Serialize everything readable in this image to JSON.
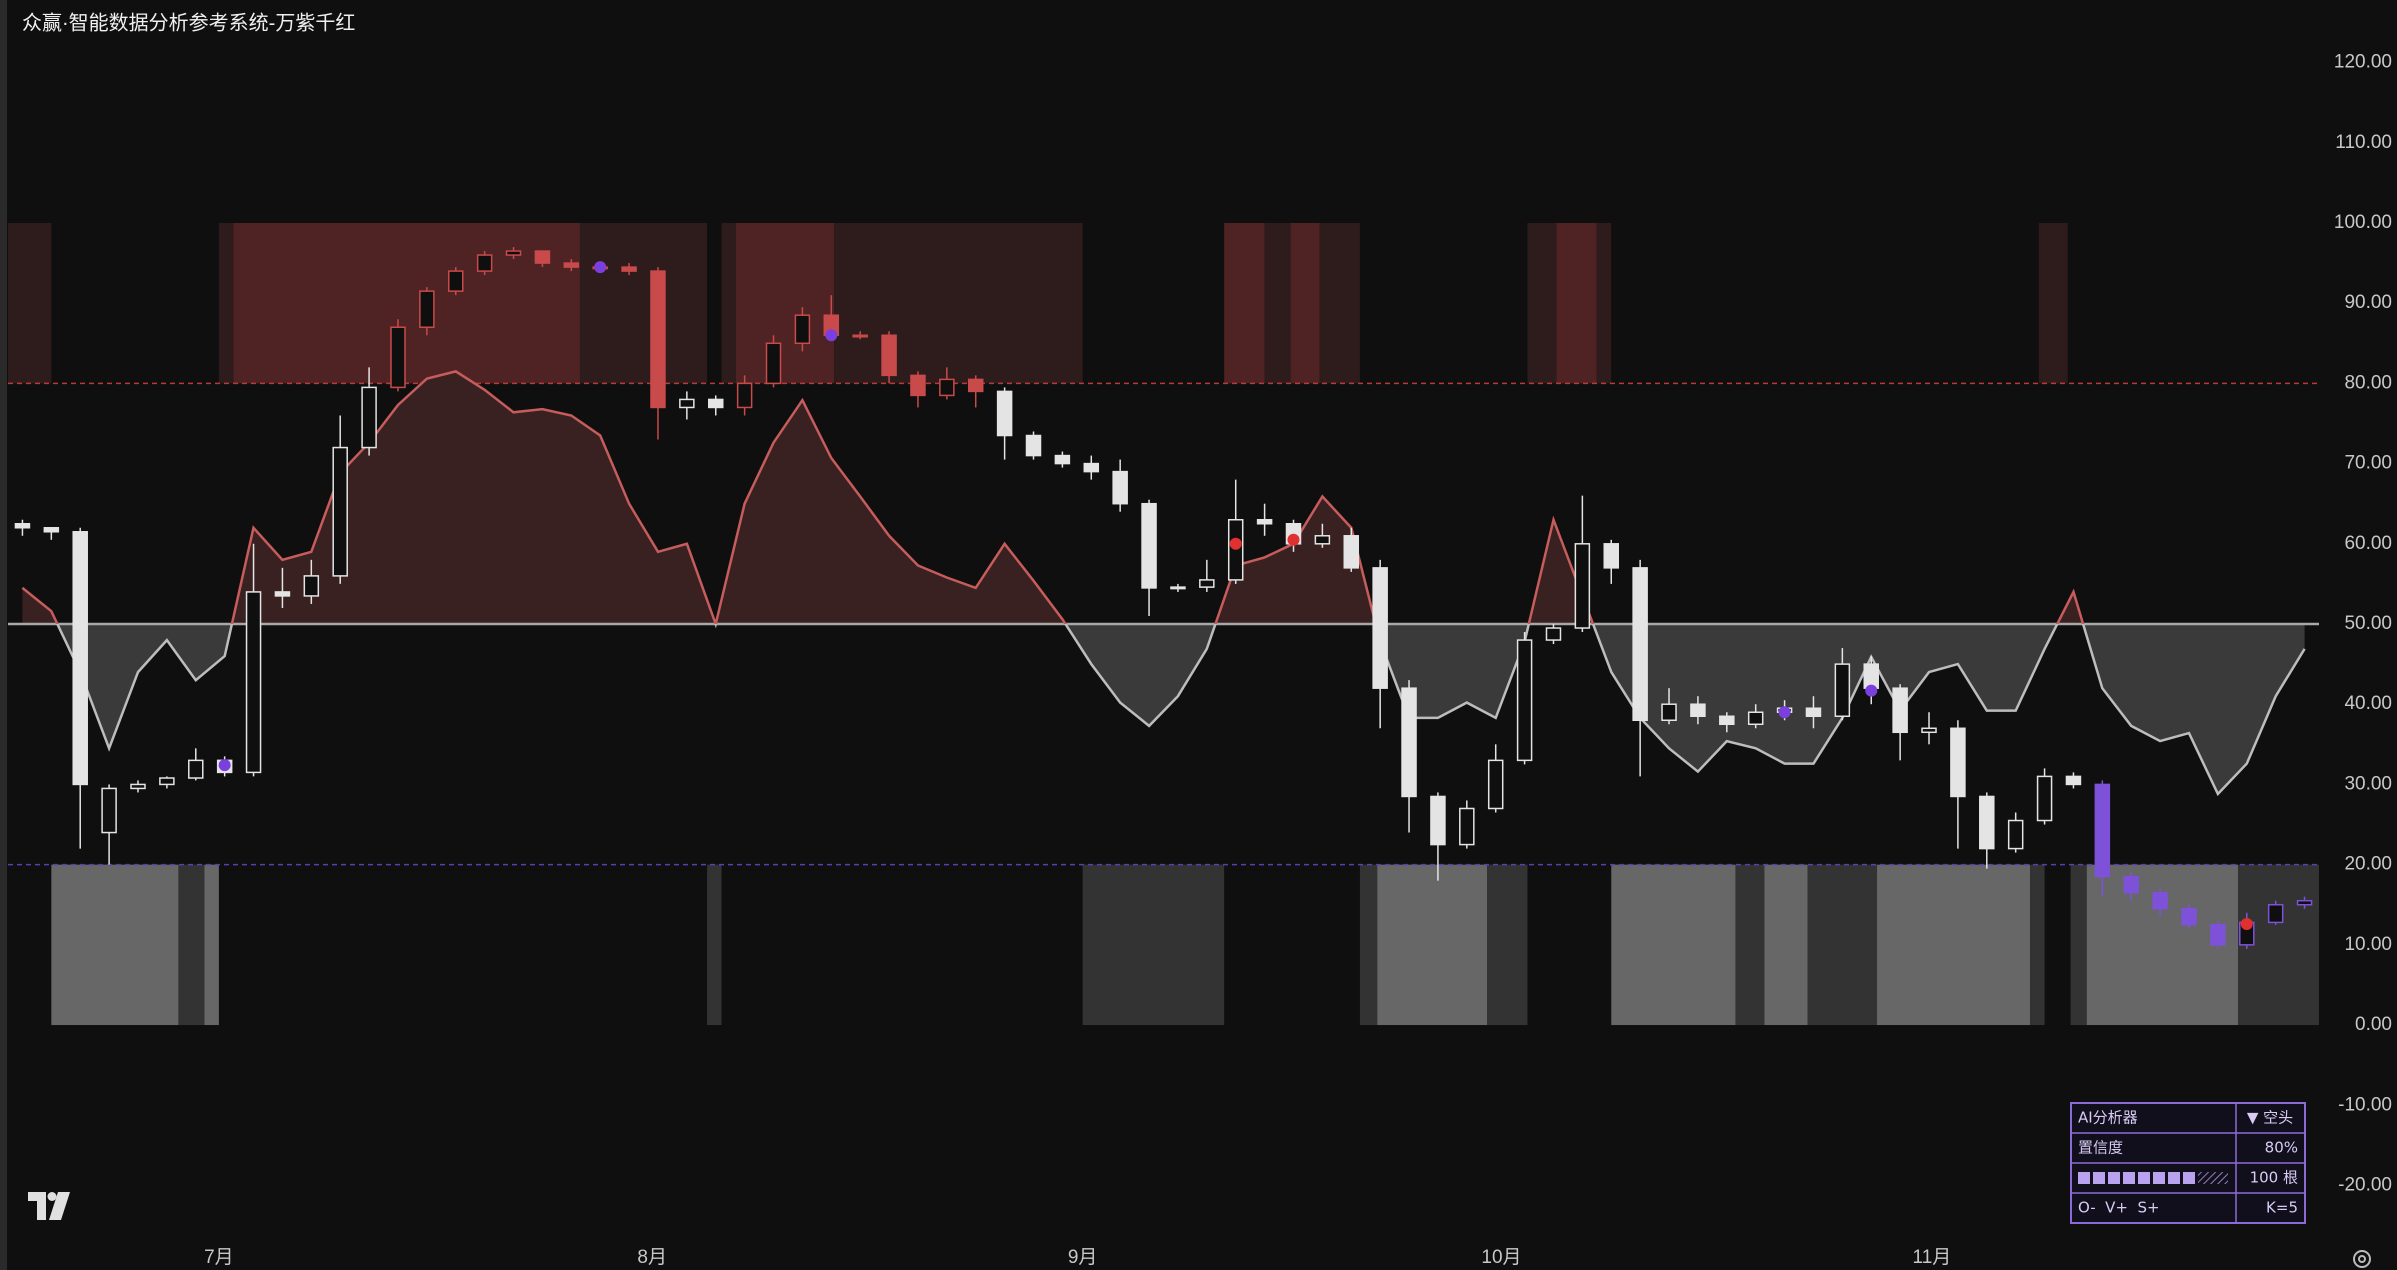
{
  "chart_data": {
    "type": "candlestick",
    "title": "众赢·智能数据分析参考系统-万紫千红",
    "ylim": [
      -26.8,
      127.8
    ],
    "yticks": [
      {
        "value": 120,
        "label": "120.00"
      },
      {
        "value": 110,
        "label": "110.00"
      },
      {
        "value": 100,
        "label": "100.00"
      },
      {
        "value": 90,
        "label": "90.00"
      },
      {
        "value": 80,
        "label": "80.00"
      },
      {
        "value": 70,
        "label": "70.00"
      },
      {
        "value": 60,
        "label": "60.00"
      },
      {
        "value": 50,
        "label": "50.00"
      },
      {
        "value": 40,
        "label": "40.00"
      },
      {
        "value": 30,
        "label": "30.00"
      },
      {
        "value": 20,
        "label": "20.00"
      },
      {
        "value": 10,
        "label": "10.00"
      },
      {
        "value": 0,
        "label": "0.00"
      },
      {
        "value": -10,
        "label": "-10.00"
      },
      {
        "value": -20,
        "label": "-20.00"
      }
    ],
    "xlim": [
      0,
      80
    ],
    "xticks": [
      {
        "value": 7.3,
        "label": "7月"
      },
      {
        "value": 22.3,
        "label": "8月"
      },
      {
        "value": 37.2,
        "label": "9月"
      },
      {
        "value": 51.7,
        "label": "10月"
      },
      {
        "value": 66.6,
        "label": "11月"
      }
    ],
    "open": [
      62.5,
      62,
      61.5,
      24,
      29.5,
      30,
      30.8,
      33,
      31.5,
      54,
      53.5,
      56,
      72,
      79.5,
      87,
      91.5,
      94,
      96,
      96.5,
      95,
      94.5,
      94.5,
      94,
      77,
      78,
      77,
      80,
      85,
      88.5,
      86,
      86,
      81,
      78.5,
      80.5,
      79,
      73.5,
      71,
      70,
      69,
      65,
      54.5,
      54.6,
      55.5,
      63,
      62.5,
      60,
      61,
      57,
      42,
      28.5,
      22.5,
      27,
      33,
      48,
      49.5,
      60,
      57,
      38,
      40,
      38.5,
      37.5,
      39,
      39.5,
      38.5,
      45,
      42,
      36.5,
      37,
      28.5,
      22,
      25.5,
      31,
      30,
      18.5,
      16.5,
      14.5,
      12.5,
      10,
      12.8,
      15
    ],
    "high": [
      63,
      62,
      62,
      30,
      30.5,
      31,
      34.5,
      33.5,
      60,
      57,
      58,
      76,
      82,
      88,
      92,
      94.5,
      96.5,
      97,
      96.5,
      95.5,
      95,
      95,
      94.5,
      79,
      78.5,
      81,
      86,
      89.5,
      91,
      86.5,
      86.5,
      81.5,
      82,
      81,
      79.5,
      74,
      71.5,
      71,
      70.5,
      65.5,
      55,
      58,
      68,
      65,
      63,
      62.5,
      62,
      58,
      43,
      29,
      28,
      35,
      49,
      50,
      66,
      60.5,
      58,
      42,
      41,
      39,
      40,
      40.5,
      41,
      47,
      46,
      42.5,
      39,
      38,
      29,
      26.5,
      32,
      31.5,
      30.5,
      19,
      17,
      15,
      13,
      14,
      15.5,
      16
    ],
    "low": [
      61,
      60.5,
      22,
      20,
      29,
      29.5,
      30.5,
      31,
      31,
      52,
      52.5,
      55,
      71,
      79,
      86,
      91,
      93.5,
      95.5,
      94.5,
      94,
      94,
      93.5,
      73,
      75.5,
      76,
      76,
      79.5,
      84,
      85.5,
      85.5,
      80,
      77,
      78,
      77,
      70.5,
      70.5,
      69.5,
      68,
      64,
      51,
      54,
      54,
      55,
      61,
      59,
      59.5,
      56.5,
      37,
      24,
      18,
      22,
      26.5,
      32.5,
      47.5,
      49,
      55,
      31,
      37.5,
      37.5,
      36.5,
      37,
      38,
      37,
      38,
      40,
      33,
      35,
      22,
      19.5,
      21.5,
      25,
      29.5,
      16,
      15.5,
      13.5,
      12,
      9.5,
      9.5,
      12.5,
      14.5
    ],
    "close": [
      62,
      61.5,
      30,
      29.5,
      30,
      30.8,
      33,
      31.5,
      54,
      53.5,
      56,
      72,
      79.5,
      87,
      91.5,
      94,
      96,
      96.5,
      95,
      94.5,
      94.5,
      94,
      77,
      78,
      77,
      80,
      85,
      88.5,
      86,
      86,
      81,
      78.5,
      80.5,
      79,
      73.5,
      71,
      70,
      69,
      65,
      54.5,
      54.6,
      55.5,
      63,
      62.5,
      60,
      61,
      57,
      42,
      28.5,
      22.5,
      27,
      33,
      48,
      49.5,
      60,
      57,
      38,
      40,
      38.5,
      37.5,
      39,
      39.5,
      38.5,
      45,
      42,
      36.5,
      37,
      28.5,
      22,
      25.5,
      31,
      30,
      18.5,
      16.5,
      14.5,
      12.5,
      10,
      12.8,
      15,
      15.5
    ],
    "candle_colors": {
      "default": "#e4e4e4",
      "upper": "#c94a4a",
      "lower": "#7d52d9"
    },
    "hlines": [
      {
        "value": 80,
        "color": "#b83a3a"
      },
      {
        "value": 20,
        "color": "#5b3fb0"
      }
    ],
    "oscillator": {
      "values": [
        54.5,
        51.6,
        44,
        34.5,
        44,
        48,
        43,
        46,
        62,
        58,
        59,
        68.8,
        72.6,
        77.3,
        80.6,
        81.5,
        79.2,
        76.4,
        76.8,
        76,
        73.5,
        65,
        59,
        60,
        50,
        65,
        72.6,
        77.9,
        70.7,
        65.9,
        61,
        57.3,
        55.8,
        54.5,
        60,
        55.4,
        50.6,
        45,
        40.2,
        37.3,
        41,
        46.9,
        57.3,
        58.3,
        60,
        65.9,
        62,
        47.8,
        38.3,
        38.3,
        40.2,
        38.3,
        47.8,
        63,
        53.5,
        44,
        38.3,
        34.5,
        31.6,
        35.4,
        34.5,
        32.6,
        32.6,
        38.3,
        45.9,
        39.2,
        44,
        45,
        39.2,
        39.2,
        46.9,
        54,
        42,
        37.3,
        35.4,
        36.4,
        28.8,
        32.6,
        41,
        46.9
      ],
      "baseline": 50,
      "colors": {
        "above": "#c65c5c",
        "below": "#bdbdbd",
        "fill_above": "#3a2121",
        "fill_below": "#3a3a3a",
        "baseline": "#a8a8a8"
      }
    },
    "bands": [
      {
        "ylim": [
          80,
          100
        ],
        "zones": [
          {
            "x": [
              0,
              1.5
            ],
            "color": "#2e1c1c"
          },
          {
            "x": [
              7.3,
              7.8
            ],
            "color": "#2e1c1c"
          },
          {
            "x": [
              7.8,
              19.8
            ],
            "color": "#4f2324"
          },
          {
            "x": [
              19.8,
              24.2
            ],
            "color": "#2e1c1c"
          },
          {
            "x": [
              24.7,
              25.2
            ],
            "color": "#2e1c1c"
          },
          {
            "x": [
              25.2,
              28.6
            ],
            "color": "#4f2324"
          },
          {
            "x": [
              28.6,
              37.2
            ],
            "color": "#2e1c1c"
          },
          {
            "x": [
              42.1,
              43.5
            ],
            "color": "#4f2324"
          },
          {
            "x": [
              43.5,
              44.4
            ],
            "color": "#2e1c1c"
          },
          {
            "x": [
              44.4,
              45.4
            ],
            "color": "#4f2324"
          },
          {
            "x": [
              45.4,
              46.8
            ],
            "color": "#2e1c1c"
          },
          {
            "x": [
              52.6,
              53.6
            ],
            "color": "#2e1c1c"
          },
          {
            "x": [
              53.6,
              55
            ],
            "color": "#4f2324"
          },
          {
            "x": [
              55,
              55.5
            ],
            "color": "#2e1c1c"
          },
          {
            "x": [
              70.3,
              71.3
            ],
            "color": "#2e1c1c"
          }
        ]
      },
      {
        "ylim": [
          0,
          20
        ],
        "zones": [
          {
            "x": [
              1.5,
              5.9
            ],
            "color": "#676767"
          },
          {
            "x": [
              5.9,
              6.8
            ],
            "color": "#333333"
          },
          {
            "x": [
              6.8,
              7.3
            ],
            "color": "#676767"
          },
          {
            "x": [
              24.2,
              24.7
            ],
            "color": "#333333"
          },
          {
            "x": [
              37.2,
              42.1
            ],
            "color": "#333333"
          },
          {
            "x": [
              46.8,
              47.4
            ],
            "color": "#333333"
          },
          {
            "x": [
              47.4,
              51.2
            ],
            "color": "#676767"
          },
          {
            "x": [
              51.2,
              52.6
            ],
            "color": "#333333"
          },
          {
            "x": [
              55.5,
              59.8
            ],
            "color": "#676767"
          },
          {
            "x": [
              59.8,
              60.8
            ],
            "color": "#333333"
          },
          {
            "x": [
              60.8,
              62.3
            ],
            "color": "#676767"
          },
          {
            "x": [
              62.3,
              64.7
            ],
            "color": "#333333"
          },
          {
            "x": [
              64.7,
              70
            ],
            "color": "#676767"
          },
          {
            "x": [
              70,
              70.5
            ],
            "color": "#333333"
          },
          {
            "x": [
              71.4,
              71.96
            ],
            "color": "#333333"
          },
          {
            "x": [
              71.96,
              77.2
            ],
            "color": "#676767"
          },
          {
            "x": [
              77.2,
              80
            ],
            "color": "#333333"
          }
        ]
      }
    ],
    "signals": [
      {
        "x": 7.5,
        "y": 32.4,
        "color": "#7b3fe0"
      },
      {
        "x": 20.5,
        "y": 94.5,
        "color": "#7b3fe0"
      },
      {
        "x": 28.5,
        "y": 86,
        "color": "#7b3fe0"
      },
      {
        "x": 61.5,
        "y": 39,
        "color": "#7b3fe0"
      },
      {
        "x": 64.5,
        "y": 41.7,
        "color": "#7b3fe0"
      },
      {
        "x": 42.5,
        "y": 60,
        "color": "#e03030"
      },
      {
        "x": 44.5,
        "y": 60.5,
        "color": "#e03030"
      },
      {
        "x": 77.5,
        "y": 12.6,
        "color": "#e03030"
      }
    ]
  },
  "panel": {
    "rows": [
      {
        "label": "AI分析器",
        "value": "▼ 空头"
      },
      {
        "label": "置信度",
        "value": "80%"
      },
      {
        "value": "100 根"
      },
      {
        "label": "O-  V+  S+",
        "value": "K=5"
      }
    ]
  }
}
